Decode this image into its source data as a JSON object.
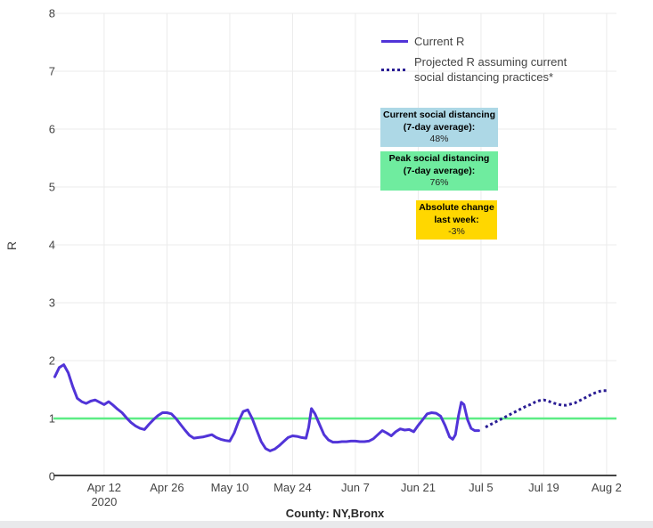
{
  "chart_data": {
    "type": "line",
    "title": "",
    "xlabel": "County: NY,Bronx",
    "ylabel": "R",
    "ylim": [
      0,
      8
    ],
    "xlim_days": [
      -0.3,
      125.2
    ],
    "x_day_zero": "Apr 1 2020",
    "grid": true,
    "legend_position": "top-inside-right",
    "y_ticks": [
      0,
      1,
      2,
      3,
      4,
      5,
      6,
      7,
      8
    ],
    "x_ticks": [
      {
        "day": 11,
        "label": "Apr 12",
        "sublabel": "2020"
      },
      {
        "day": 25,
        "label": "Apr 26"
      },
      {
        "day": 39,
        "label": "May 10"
      },
      {
        "day": 53,
        "label": "May 24"
      },
      {
        "day": 67,
        "label": "Jun 7"
      },
      {
        "day": 81,
        "label": "Jun 21"
      },
      {
        "day": 95,
        "label": "Jul 5"
      },
      {
        "day": 109,
        "label": "Jul 19"
      },
      {
        "day": 123,
        "label": "Aug 2"
      }
    ],
    "reference_line": {
      "y": 1,
      "color": "#5ced85"
    },
    "colors": {
      "grid": "#ebebeb",
      "axis": "#444444",
      "tick_text": "#444444"
    },
    "series": [
      {
        "name": "Current R",
        "style": "solid",
        "color": "#5134d8",
        "points": [
          [
            0,
            1.72
          ],
          [
            1,
            1.88
          ],
          [
            2,
            1.93
          ],
          [
            3,
            1.79
          ],
          [
            4,
            1.55
          ],
          [
            5,
            1.35
          ],
          [
            6,
            1.29
          ],
          [
            7,
            1.26
          ],
          [
            8,
            1.3
          ],
          [
            9,
            1.32
          ],
          [
            10,
            1.28
          ],
          [
            11,
            1.24
          ],
          [
            12,
            1.29
          ],
          [
            13,
            1.23
          ],
          [
            14,
            1.16
          ],
          [
            15,
            1.1
          ],
          [
            16,
            1.01
          ],
          [
            17,
            0.93
          ],
          [
            18,
            0.87
          ],
          [
            19,
            0.83
          ],
          [
            20,
            0.81
          ],
          [
            21,
            0.9
          ],
          [
            22,
            0.98
          ],
          [
            23,
            1.05
          ],
          [
            24,
            1.1
          ],
          [
            25,
            1.1
          ],
          [
            26,
            1.08
          ],
          [
            27,
            1.0
          ],
          [
            28,
            0.9
          ],
          [
            29,
            0.8
          ],
          [
            30,
            0.71
          ],
          [
            31,
            0.66
          ],
          [
            32,
            0.67
          ],
          [
            33,
            0.68
          ],
          [
            34,
            0.7
          ],
          [
            35,
            0.72
          ],
          [
            36,
            0.67
          ],
          [
            37,
            0.64
          ],
          [
            38,
            0.62
          ],
          [
            39,
            0.61
          ],
          [
            40,
            0.75
          ],
          [
            41,
            0.96
          ],
          [
            42,
            1.12
          ],
          [
            43,
            1.15
          ],
          [
            44,
            1.0
          ],
          [
            45,
            0.8
          ],
          [
            46,
            0.6
          ],
          [
            47,
            0.48
          ],
          [
            48,
            0.44
          ],
          [
            49,
            0.47
          ],
          [
            50,
            0.53
          ],
          [
            51,
            0.6
          ],
          [
            52,
            0.67
          ],
          [
            53,
            0.7
          ],
          [
            54,
            0.69
          ],
          [
            55,
            0.67
          ],
          [
            56,
            0.66
          ],
          [
            56.6,
            0.85
          ],
          [
            57.2,
            1.17
          ],
          [
            58,
            1.08
          ],
          [
            59,
            0.9
          ],
          [
            60,
            0.72
          ],
          [
            61,
            0.63
          ],
          [
            62,
            0.59
          ],
          [
            63,
            0.59
          ],
          [
            64,
            0.6
          ],
          [
            65,
            0.6
          ],
          [
            66,
            0.61
          ],
          [
            67,
            0.61
          ],
          [
            68,
            0.6
          ],
          [
            69,
            0.6
          ],
          [
            70,
            0.61
          ],
          [
            71,
            0.65
          ],
          [
            72,
            0.72
          ],
          [
            73,
            0.79
          ],
          [
            74,
            0.75
          ],
          [
            75,
            0.7
          ],
          [
            76,
            0.77
          ],
          [
            77,
            0.82
          ],
          [
            78,
            0.8
          ],
          [
            79,
            0.81
          ],
          [
            80,
            0.77
          ],
          [
            81,
            0.88
          ],
          [
            82,
            0.98
          ],
          [
            83,
            1.08
          ],
          [
            84,
            1.1
          ],
          [
            85,
            1.09
          ],
          [
            86,
            1.04
          ],
          [
            87,
            0.88
          ],
          [
            88,
            0.68
          ],
          [
            88.7,
            0.64
          ],
          [
            89.3,
            0.72
          ],
          [
            90,
            1.05
          ],
          [
            90.6,
            1.28
          ],
          [
            91.2,
            1.24
          ],
          [
            92,
            0.98
          ],
          [
            92.8,
            0.83
          ],
          [
            93.6,
            0.79
          ],
          [
            94.5,
            0.79
          ]
        ]
      },
      {
        "name": "Projected R assuming current social distancing practices*",
        "style": "dotted",
        "color": "#2a1d94",
        "points": [
          [
            96,
            0.85
          ],
          [
            97,
            0.89
          ],
          [
            98,
            0.93
          ],
          [
            99,
            0.97
          ],
          [
            100,
            1.01
          ],
          [
            101,
            1.05
          ],
          [
            102,
            1.09
          ],
          [
            103,
            1.13
          ],
          [
            104,
            1.17
          ],
          [
            105,
            1.21
          ],
          [
            106,
            1.24
          ],
          [
            107,
            1.28
          ],
          [
            108,
            1.31
          ],
          [
            109,
            1.32
          ],
          [
            110,
            1.3
          ],
          [
            111,
            1.27
          ],
          [
            112,
            1.25
          ],
          [
            113,
            1.23
          ],
          [
            114,
            1.23
          ],
          [
            115,
            1.25
          ],
          [
            116,
            1.27
          ],
          [
            117,
            1.31
          ],
          [
            118,
            1.35
          ],
          [
            119,
            1.39
          ],
          [
            120,
            1.43
          ],
          [
            121,
            1.46
          ],
          [
            122,
            1.48
          ],
          [
            123,
            1.48
          ]
        ]
      }
    ],
    "annotations": [
      {
        "line1": "Current social distancing",
        "line2": "(7-day average):",
        "value": "48%",
        "bg": "#add8e6"
      },
      {
        "line1": "Peak social distancing",
        "line2": "(7-day average):",
        "value": "76%",
        "bg": "#6fec9f"
      },
      {
        "line1": "Absolute change",
        "line2": "last week:",
        "value": "-3%",
        "bg": "#ffd700"
      }
    ]
  }
}
